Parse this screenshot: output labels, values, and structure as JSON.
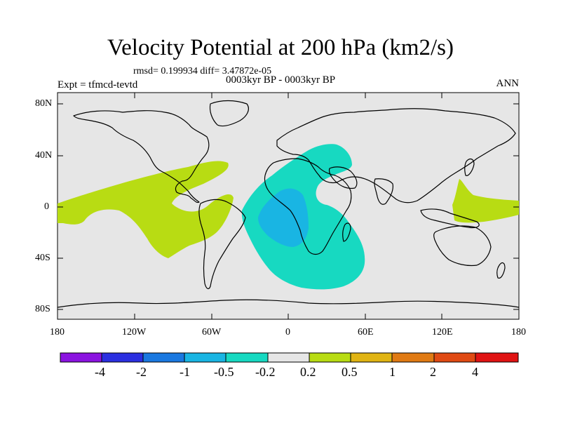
{
  "title": "Velocity Potential at 200 hPa (km2/s)",
  "stats": "rmsd= 0.199934 diff= 3.47872e-05",
  "period": "0003kyr BP - 0003kyr BP",
  "experiment": "Expt = tfmcd-tevtd",
  "season": "ANN",
  "y_ticks": [
    "80N",
    "40N",
    "0",
    "40S",
    "80S"
  ],
  "x_ticks": [
    "180",
    "120W",
    "60W",
    "0",
    "60E",
    "120E",
    "180"
  ],
  "colorbar": {
    "labels": [
      "-4",
      "-2",
      "-1",
      "-0.5",
      "-0.2",
      "0.2",
      "0.5",
      "1",
      "2",
      "4"
    ],
    "colors": [
      "#8B13E0",
      "#2B2FE0",
      "#1A78E0",
      "#19B5E3",
      "#17D9C1",
      "#E6E6E6",
      "#B8DC13",
      "#E0B413",
      "#E07A13",
      "#E04A13",
      "#E01313"
    ]
  },
  "field_colors": {
    "neutral": "#E6E6E6",
    "pos_02_05": "#B8DC13",
    "neg_02_05": "#17D9C1",
    "neg_05_1": "#19B5E3"
  }
}
